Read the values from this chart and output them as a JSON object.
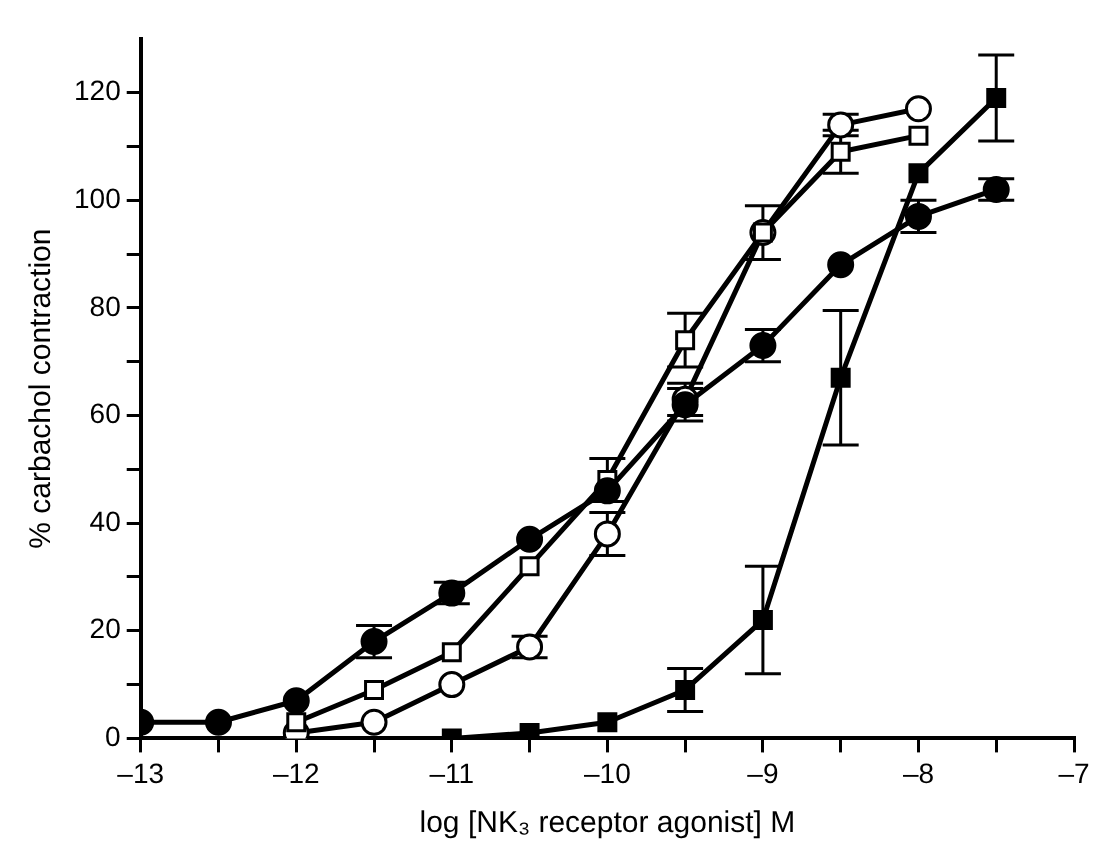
{
  "chart_data": {
    "type": "line",
    "xlabel": "log [NK₃ receptor agonist] M",
    "ylabel": "% carbachol contraction",
    "xlim": [
      -13,
      -7
    ],
    "ylim": [
      0,
      130
    ],
    "xticks": [
      {
        "value": -13,
        "label": "–13"
      },
      {
        "value": -12.5,
        "label": null
      },
      {
        "value": -12,
        "label": "–12"
      },
      {
        "value": -11.5,
        "label": null
      },
      {
        "value": -11,
        "label": "–11"
      },
      {
        "value": -10.5,
        "label": null
      },
      {
        "value": -10,
        "label": "–10"
      },
      {
        "value": -9.5,
        "label": null
      },
      {
        "value": -9,
        "label": "–9"
      },
      {
        "value": -8.5,
        "label": null
      },
      {
        "value": -8,
        "label": "–8"
      },
      {
        "value": -7.5,
        "label": null
      },
      {
        "value": -7,
        "label": "–7"
      }
    ],
    "yticks": [
      0,
      {
        "value": 10,
        "label": null
      },
      20,
      {
        "value": 30,
        "label": null
      },
      40,
      {
        "value": 50,
        "label": null
      },
      60,
      {
        "value": 70,
        "label": null
      },
      80,
      {
        "value": 90,
        "label": null
      },
      100,
      {
        "value": 110,
        "label": null
      },
      120
    ],
    "grid": false,
    "legend": false,
    "line_style": "solid",
    "series": [
      {
        "color": "#000000",
        "marker": "circle",
        "x": [
          -13,
          -12.5,
          -12,
          -11.5,
          -11,
          -10.5,
          -10,
          -9.5,
          -9,
          -8.5,
          -8,
          -7.5
        ],
        "values": [
          3,
          3,
          7,
          18,
          27,
          37,
          46,
          62,
          73,
          88,
          97,
          102
        ],
        "errors": [
          null,
          null,
          null,
          3,
          2,
          null,
          null,
          3,
          3,
          null,
          3,
          2
        ]
      },
      {
        "color": "#000000",
        "marker": "square",
        "x": [
          -12,
          -11.5,
          -11,
          -10.5,
          -10,
          -9.5,
          -9,
          -8.5,
          -8
        ],
        "values": [
          3,
          9,
          16,
          32,
          48,
          74,
          94,
          109,
          112
        ],
        "errors": [
          null,
          null,
          null,
          null,
          4,
          5,
          5,
          4,
          null
        ]
      },
      {
        "color": "#000000",
        "marker": "circle",
        "x": [
          -12,
          -11.5,
          -11,
          -10.5,
          -10,
          -9.5,
          -9,
          -8.5,
          -8
        ],
        "values": [
          1,
          3,
          10,
          17,
          38,
          63,
          94,
          114,
          117
        ],
        "errors": [
          null,
          null,
          null,
          2,
          4,
          3,
          null,
          2,
          null
        ]
      },
      {
        "color": "#000000",
        "marker": "square",
        "x": [
          -11,
          -10.5,
          -10,
          -9.5,
          -9,
          -8.5,
          -8,
          -7.5
        ],
        "values": [
          0,
          1,
          3,
          9,
          22,
          67,
          105,
          119
        ],
        "errors": [
          null,
          null,
          null,
          4,
          10,
          12.5,
          null,
          8
        ]
      }
    ]
  }
}
